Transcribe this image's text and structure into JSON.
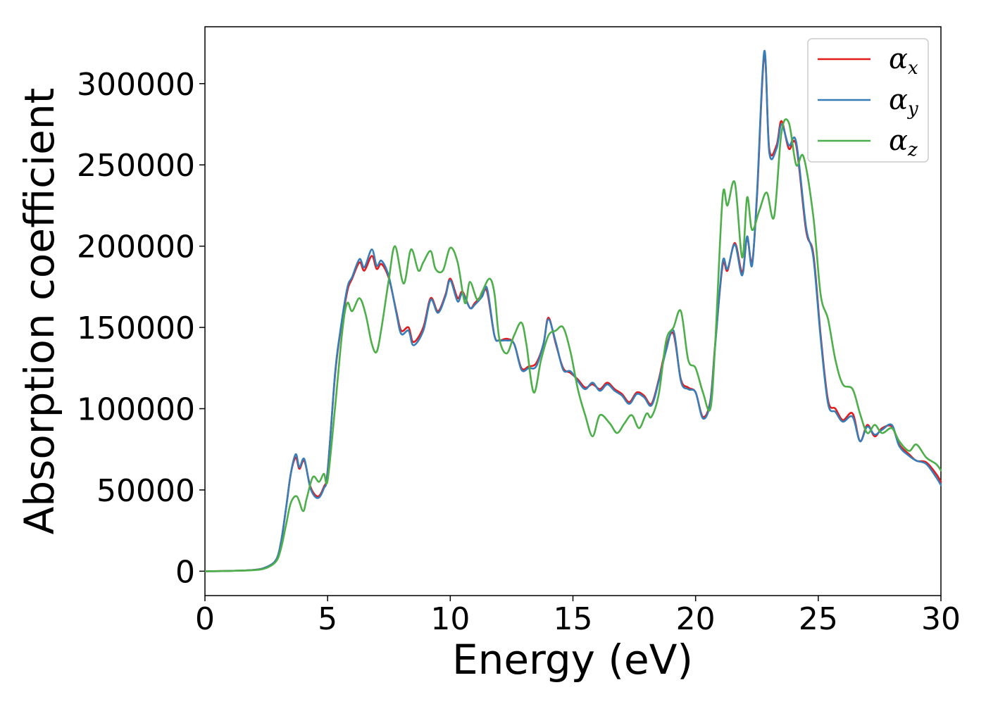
{
  "chart_data": {
    "type": "line",
    "title": "",
    "xlabel": "Energy (eV)",
    "ylabel": "Absorption coefficient",
    "xlim": [
      0,
      30
    ],
    "ylim": [
      -15000,
      335000
    ],
    "x_ticks": [
      0,
      5,
      10,
      15,
      20,
      25,
      30
    ],
    "x_tick_labels": [
      "0",
      "5",
      "10",
      "15",
      "20",
      "25",
      "30"
    ],
    "y_ticks": [
      0,
      50000,
      100000,
      150000,
      200000,
      250000,
      300000
    ],
    "y_tick_labels": [
      "0",
      "50000",
      "100000",
      "150000",
      "200000",
      "250000",
      "300000"
    ],
    "grid": false,
    "legend": {
      "placement": "top-right",
      "entries": [
        {
          "symbol": "α",
          "sub": "x"
        },
        {
          "symbol": "α",
          "sub": "y"
        },
        {
          "symbol": "α",
          "sub": "z"
        }
      ]
    },
    "series": [
      {
        "color": "#e41a1c",
        "x": [
          0,
          1,
          2,
          2.5,
          2.9,
          3.1,
          3.3,
          3.5,
          3.7,
          3.85,
          4.05,
          4.3,
          4.6,
          4.85,
          5.0,
          5.3,
          5.5,
          5.8,
          6.0,
          6.3,
          6.5,
          6.8,
          7.0,
          7.2,
          7.5,
          7.8,
          8.0,
          8.3,
          8.5,
          8.9,
          9.2,
          9.5,
          9.8,
          10.0,
          10.3,
          10.5,
          10.8,
          11.0,
          11.3,
          11.5,
          11.8,
          12.0,
          12.3,
          12.6,
          12.9,
          13.2,
          13.5,
          13.8,
          14.0,
          14.3,
          14.6,
          14.9,
          15.2,
          15.5,
          15.8,
          16.1,
          16.4,
          16.7,
          17.0,
          17.3,
          17.6,
          17.9,
          18.2,
          18.5,
          18.8,
          19.1,
          19.4,
          19.7,
          20.0,
          20.3,
          20.6,
          20.8,
          21.1,
          21.3,
          21.6,
          21.9,
          22.1,
          22.3,
          22.5,
          22.8,
          23.0,
          23.3,
          23.5,
          23.8,
          24.1,
          24.5,
          24.8,
          25.1,
          25.4,
          25.7,
          26.0,
          26.4,
          26.7,
          27.0,
          27.3,
          27.6,
          28.0,
          28.3,
          28.7,
          29.0,
          29.4,
          29.8,
          30.0
        ],
        "y": [
          0,
          200,
          800,
          2500,
          7000,
          18000,
          38000,
          60000,
          70000,
          63000,
          68000,
          52000,
          46000,
          52000,
          62000,
          120000,
          145000,
          172000,
          180000,
          190000,
          185000,
          194000,
          186000,
          189000,
          180000,
          160000,
          148000,
          150000,
          141000,
          150000,
          168000,
          160000,
          170000,
          180000,
          168000,
          172000,
          162000,
          165000,
          170000,
          172000,
          145000,
          142000,
          143000,
          140000,
          125000,
          126000,
          128000,
          140000,
          156000,
          140000,
          125000,
          122000,
          118000,
          113000,
          115000,
          112000,
          116000,
          112000,
          109000,
          104000,
          110000,
          108000,
          103000,
          118000,
          138000,
          146000,
          118000,
          113000,
          110000,
          95000,
          105000,
          140000,
          188000,
          185000,
          202000,
          184000,
          205000,
          190000,
          230000,
          318000,
          260000,
          262000,
          277000,
          260000,
          262000,
          210000,
          195000,
          145000,
          105000,
          100000,
          93000,
          97000,
          80000,
          90000,
          83000,
          88000,
          89000,
          78000,
          72000,
          68000,
          67000,
          60000,
          55000
        ]
      },
      {
        "color": "#377eb8",
        "x": [
          0,
          1,
          2,
          2.5,
          2.9,
          3.1,
          3.3,
          3.5,
          3.7,
          3.85,
          4.05,
          4.3,
          4.6,
          4.85,
          5.0,
          5.3,
          5.5,
          5.8,
          6.0,
          6.3,
          6.5,
          6.8,
          7.0,
          7.2,
          7.5,
          7.8,
          8.0,
          8.3,
          8.5,
          8.9,
          9.2,
          9.5,
          9.8,
          10.0,
          10.3,
          10.5,
          10.8,
          11.0,
          11.3,
          11.5,
          11.8,
          12.0,
          12.3,
          12.6,
          12.9,
          13.2,
          13.5,
          13.8,
          14.0,
          14.3,
          14.6,
          14.9,
          15.2,
          15.5,
          15.8,
          16.1,
          16.4,
          16.7,
          17.0,
          17.3,
          17.6,
          17.9,
          18.2,
          18.5,
          18.8,
          19.1,
          19.4,
          19.7,
          20.0,
          20.3,
          20.6,
          20.8,
          21.1,
          21.3,
          21.6,
          21.9,
          22.1,
          22.3,
          22.5,
          22.8,
          23.0,
          23.3,
          23.5,
          23.8,
          24.1,
          24.5,
          24.8,
          25.1,
          25.4,
          25.7,
          26.0,
          26.4,
          26.7,
          27.0,
          27.3,
          27.6,
          28.0,
          28.3,
          28.7,
          29.0,
          29.4,
          29.8,
          30.0
        ],
        "y": [
          0,
          200,
          800,
          2500,
          7000,
          18000,
          38000,
          60000,
          72000,
          64000,
          69000,
          51000,
          45000,
          51000,
          61000,
          121000,
          146000,
          174000,
          181000,
          192000,
          187000,
          198000,
          188000,
          191000,
          181000,
          159000,
          146000,
          148000,
          139000,
          148000,
          167000,
          159000,
          169000,
          179000,
          166000,
          171000,
          162000,
          164000,
          169000,
          174000,
          145000,
          142000,
          142000,
          140000,
          124000,
          125000,
          126000,
          140000,
          155000,
          141000,
          124000,
          123000,
          117000,
          112000,
          116000,
          111000,
          115000,
          111000,
          108000,
          103000,
          109000,
          107000,
          102000,
          117000,
          136000,
          148000,
          117000,
          112000,
          110000,
          94000,
          104000,
          139000,
          190000,
          186000,
          201000,
          182000,
          206000,
          188000,
          232000,
          320000,
          258000,
          260000,
          275000,
          262000,
          264000,
          212000,
          193000,
          143000,
          103000,
          98000,
          92000,
          95000,
          80000,
          89000,
          84000,
          87000,
          90000,
          77000,
          71000,
          68000,
          66000,
          58000,
          53000
        ]
      },
      {
        "color": "#4daf4a",
        "x": [
          0,
          1,
          2,
          2.5,
          2.9,
          3.1,
          3.3,
          3.5,
          3.75,
          4.0,
          4.15,
          4.4,
          4.65,
          4.85,
          5.0,
          5.3,
          5.6,
          5.8,
          6.0,
          6.3,
          6.55,
          6.8,
          7.0,
          7.2,
          7.5,
          7.75,
          8.1,
          8.4,
          8.7,
          8.9,
          9.2,
          9.4,
          9.7,
          10.0,
          10.3,
          10.6,
          10.8,
          11.1,
          11.3,
          11.6,
          11.8,
          12.0,
          12.3,
          12.6,
          12.9,
          13.1,
          13.4,
          13.7,
          14.0,
          14.3,
          14.6,
          14.9,
          15.2,
          15.5,
          15.8,
          16.1,
          16.5,
          16.8,
          17.1,
          17.4,
          17.7,
          18.0,
          18.2,
          18.5,
          18.8,
          19.1,
          19.4,
          19.7,
          20.0,
          20.3,
          20.6,
          20.8,
          21.1,
          21.3,
          21.6,
          21.9,
          22.1,
          22.3,
          22.6,
          22.9,
          23.2,
          23.5,
          23.8,
          24.1,
          24.4,
          24.8,
          25.1,
          25.4,
          25.7,
          26.0,
          26.4,
          26.7,
          27.0,
          27.3,
          27.6,
          28.0,
          28.3,
          28.7,
          29.0,
          29.4,
          29.8,
          30.0
        ],
        "y": [
          0,
          200,
          700,
          2000,
          6000,
          14000,
          28000,
          42000,
          46000,
          37000,
          45000,
          58000,
          55000,
          60000,
          56000,
          100000,
          148000,
          165000,
          160000,
          168000,
          158000,
          140000,
          135000,
          150000,
          180000,
          200000,
          177000,
          198000,
          185000,
          190000,
          197000,
          186000,
          185000,
          199000,
          190000,
          165000,
          178000,
          167000,
          172000,
          180000,
          171000,
          143000,
          134000,
          145000,
          153000,
          140000,
          110000,
          130000,
          145000,
          148000,
          150000,
          135000,
          112000,
          96000,
          83000,
          96000,
          91000,
          85000,
          91000,
          96000,
          88000,
          97000,
          95000,
          109000,
          142000,
          150000,
          160000,
          130000,
          125000,
          110000,
          100000,
          140000,
          230000,
          225000,
          239000,
          193000,
          230000,
          210000,
          222000,
          233000,
          218000,
          270000,
          276000,
          250000,
          255000,
          218000,
          170000,
          155000,
          130000,
          115000,
          112000,
          97000,
          85000,
          90000,
          85000,
          88000,
          80000,
          74000,
          78000,
          70000,
          66000,
          62000
        ]
      }
    ]
  }
}
